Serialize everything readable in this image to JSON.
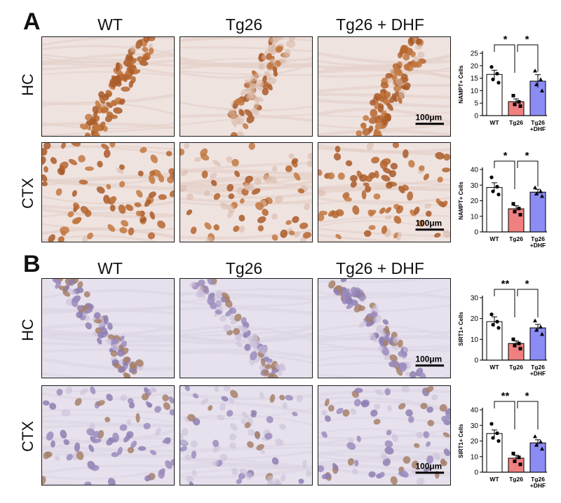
{
  "panels": [
    {
      "letter": "A",
      "columns": [
        "WT",
        "Tg26",
        "Tg26 + DHF"
      ],
      "rows": [
        "HC",
        "CTX"
      ],
      "scale_bar": "100μm",
      "stain": "brown"
    },
    {
      "letter": "B",
      "columns": [
        "WT",
        "Tg26",
        "Tg26 + DHF"
      ],
      "rows": [
        "HC",
        "CTX"
      ],
      "scale_bar": "100μm",
      "stain": "purple"
    }
  ],
  "chart_data": [
    {
      "id": "A-HC",
      "type": "bar",
      "categories": [
        "WT",
        "Tg26",
        "Tg26\n+DHF"
      ],
      "values": [
        16.5,
        5.6,
        13.8
      ],
      "errors": [
        1.7,
        1.1,
        2.6
      ],
      "points": [
        [
          19.5,
          16.8,
          14.5,
          13.2
        ],
        [
          8.0,
          5.5,
          4.5,
          3.8
        ],
        [
          18.0,
          14.5,
          12.5,
          10.0
        ]
      ],
      "bar_colors": [
        "#ffffff",
        "#f08080",
        "#8c8cf5"
      ],
      "marker_shapes": [
        "circle",
        "square",
        "triangle"
      ],
      "ylabel": "NAMPT+ Cells",
      "ylim": [
        0,
        25
      ],
      "yticks": [
        0,
        5,
        10,
        15,
        20,
        25
      ],
      "significance": [
        {
          "from": 0,
          "to": 1,
          "label": "*"
        },
        {
          "from": 1,
          "to": 2,
          "label": "*"
        }
      ]
    },
    {
      "id": "A-CTX",
      "type": "bar",
      "categories": [
        "WT",
        "Tg26",
        "Tg26\n+DHF"
      ],
      "values": [
        28.5,
        14.8,
        25.5
      ],
      "errors": [
        3.0,
        2.0,
        1.8
      ],
      "points": [
        [
          35.0,
          29.0,
          26.0,
          24.0
        ],
        [
          18.0,
          15.0,
          13.0,
          11.0
        ],
        [
          28.5,
          26.0,
          24.5,
          23.0
        ]
      ],
      "bar_colors": [
        "#ffffff",
        "#f08080",
        "#8c8cf5"
      ],
      "marker_shapes": [
        "circle",
        "square",
        "triangle"
      ],
      "ylabel": "NAMPT+ Cells",
      "ylim": [
        0,
        40
      ],
      "yticks": [
        0,
        10,
        20,
        30,
        40
      ],
      "significance": [
        {
          "from": 0,
          "to": 1,
          "label": "*"
        },
        {
          "from": 1,
          "to": 2,
          "label": "*"
        }
      ]
    },
    {
      "id": "B-HC",
      "type": "bar",
      "categories": [
        "WT",
        "Tg26",
        "Tg26\n+DHF"
      ],
      "values": [
        18.5,
        8.0,
        15.5
      ],
      "errors": [
        2.3,
        1.2,
        1.7
      ],
      "points": [
        [
          22.0,
          18.5,
          17.0,
          15.5
        ],
        [
          10.0,
          8.0,
          7.0,
          5.5
        ],
        [
          19.0,
          16.0,
          14.5,
          12.5
        ]
      ],
      "bar_colors": [
        "#ffffff",
        "#f08080",
        "#8c8cf5"
      ],
      "marker_shapes": [
        "circle",
        "square",
        "triangle"
      ],
      "ylabel": "SIRT1+ Cells",
      "ylim": [
        0,
        30
      ],
      "yticks": [
        0,
        10,
        20,
        30
      ],
      "significance": [
        {
          "from": 0,
          "to": 1,
          "label": "**"
        },
        {
          "from": 1,
          "to": 2,
          "label": "*"
        }
      ]
    },
    {
      "id": "B-CTX",
      "type": "bar",
      "categories": [
        "WT",
        "Tg26",
        "Tg26\n+DHF"
      ],
      "values": [
        24.8,
        9.0,
        18.8
      ],
      "errors": [
        2.3,
        1.8,
        2.0
      ],
      "points": [
        [
          31.0,
          25.0,
          22.0,
          20.0
        ],
        [
          12.0,
          9.5,
          7.0,
          5.0
        ],
        [
          23.0,
          19.5,
          17.5,
          15.0
        ]
      ],
      "bar_colors": [
        "#ffffff",
        "#f08080",
        "#8c8cf5"
      ],
      "marker_shapes": [
        "circle",
        "square",
        "triangle"
      ],
      "ylabel": "SIRT1+ Cells",
      "ylim": [
        0,
        40
      ],
      "yticks": [
        0,
        10,
        20,
        30,
        40
      ],
      "significance": [
        {
          "from": 0,
          "to": 1,
          "label": "**"
        },
        {
          "from": 1,
          "to": 2,
          "label": "*"
        }
      ]
    }
  ]
}
